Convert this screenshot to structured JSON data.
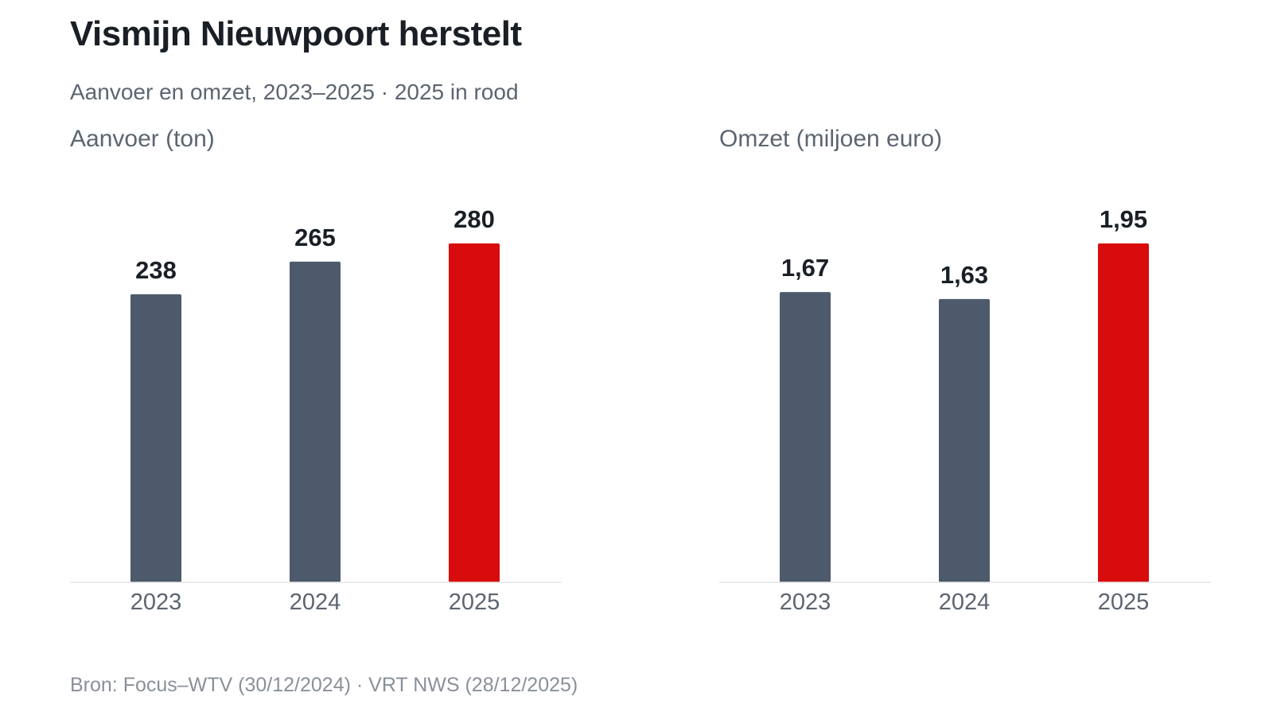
{
  "title": "Vismijn Nieuwpoort herstelt",
  "subtitle": "Aanvoer en omzet, 2023–2025 · 2025 in rood",
  "source": "Bron: Focus–WTV (30/12/2024) · VRT NWS (28/12/2025)",
  "colors": {
    "default_bar": "#4d5a6b",
    "highlight_bar": "#d80c0c",
    "baseline": "#e3e5e8"
  },
  "chart_data": [
    {
      "type": "bar",
      "title": "Aanvoer (ton)",
      "categories": [
        "2023",
        "2024",
        "2025"
      ],
      "values": [
        238,
        265,
        280
      ],
      "value_labels": [
        "238",
        "265",
        "280"
      ],
      "highlight": "2025",
      "ylim": [
        0,
        280
      ],
      "grid": false
    },
    {
      "type": "bar",
      "title": "Omzet (miljoen euro)",
      "categories": [
        "2023",
        "2024",
        "2025"
      ],
      "values": [
        1.67,
        1.63,
        1.95
      ],
      "value_labels": [
        "1,67",
        "1,63",
        "1,95"
      ],
      "highlight": "2025",
      "ylim": [
        0,
        1.95
      ],
      "grid": false
    }
  ]
}
